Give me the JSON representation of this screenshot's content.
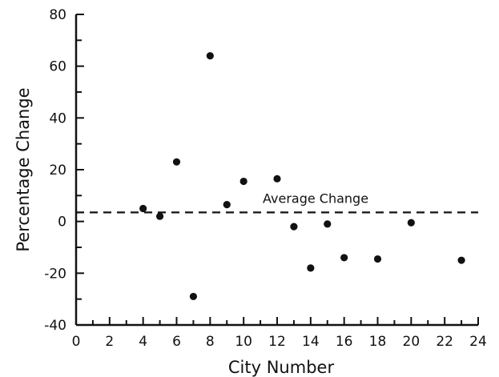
{
  "chart_data": {
    "type": "scatter",
    "xlabel": "City Number",
    "ylabel": "Percentage Change",
    "xlim": [
      0,
      24
    ],
    "ylim": [
      -40,
      80
    ],
    "x_ticks": [
      "0",
      "2",
      "4",
      "6",
      "8",
      "10",
      "12",
      "14",
      "16",
      "18",
      "20",
      "22",
      "24"
    ],
    "y_ticks": [
      "80",
      "60",
      "40",
      "20",
      "0",
      "-20",
      "-40"
    ],
    "grid": false,
    "points": [
      {
        "x": 4,
        "y": 5
      },
      {
        "x": 5,
        "y": 2
      },
      {
        "x": 6,
        "y": 23
      },
      {
        "x": 7,
        "y": -29
      },
      {
        "x": 8,
        "y": 64
      },
      {
        "x": 9,
        "y": 6.5
      },
      {
        "x": 10,
        "y": 15.5
      },
      {
        "x": 12,
        "y": 16.5
      },
      {
        "x": 13,
        "y": -2
      },
      {
        "x": 14,
        "y": -18
      },
      {
        "x": 15,
        "y": -1
      },
      {
        "x": 16,
        "y": -14
      },
      {
        "x": 18,
        "y": -14.5
      },
      {
        "x": 20,
        "y": -0.5
      },
      {
        "x": 23,
        "y": -15
      }
    ],
    "reference_line": {
      "label": "Average Change",
      "y": 3.5,
      "style": "dashed"
    }
  }
}
